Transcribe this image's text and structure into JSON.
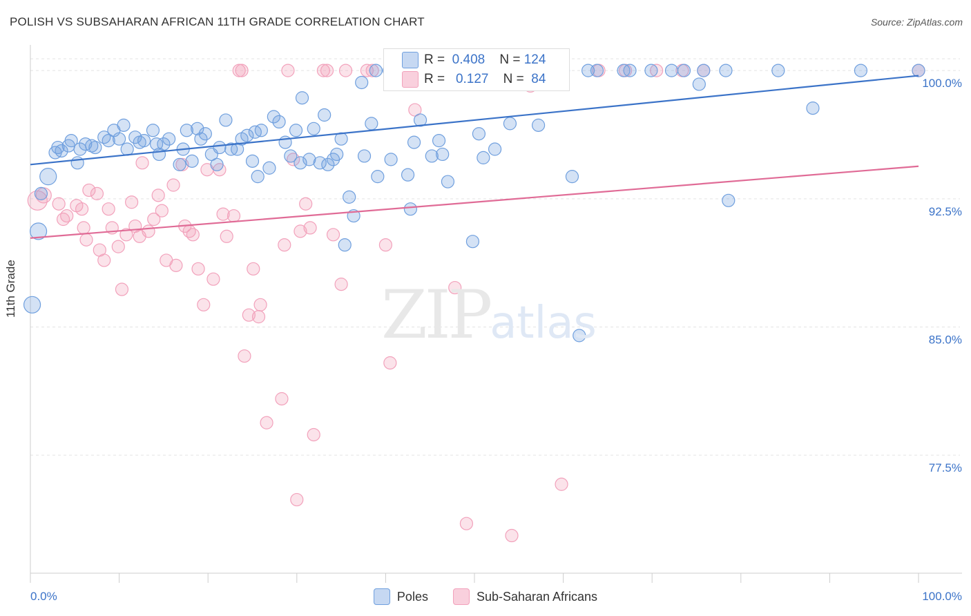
{
  "header": {
    "title": "POLISH VS SUBSAHARAN AFRICAN 11TH GRADE CORRELATION CHART",
    "source": "Source: ZipAtlas.com"
  },
  "watermark": {
    "zip": "ZIP",
    "atlas": "atlas"
  },
  "colors": {
    "blue": "#6f9fde",
    "blue_line": "#3b73c8",
    "pink": "#f2a1bb",
    "pink_line": "#e06b96",
    "tick_text": "#3b73c8"
  },
  "stats": {
    "poles": {
      "r_label": "R =",
      "r_value": "0.408",
      "n_label": "N =",
      "n_value": "124"
    },
    "africans": {
      "r_label": "R =",
      "r_value": "0.127",
      "n_label": "N =",
      "n_value": "84"
    }
  },
  "legend": {
    "poles": "Poles",
    "africans": "Sub-Saharan Africans"
  },
  "chart_data": {
    "type": "scatter",
    "title": "POLISH VS SUBSAHARAN AFRICAN 11TH GRADE CORRELATION CHART",
    "xlabel": "",
    "ylabel": "11th Grade",
    "xlim": [
      0,
      100
    ],
    "ylim": [
      70.6,
      101.5
    ],
    "x_tick_labels": [
      "0.0%",
      "100.0%"
    ],
    "y_ticks": [
      {
        "value": 100,
        "label": "100.0%"
      },
      {
        "value": 92.5,
        "label": "92.5%"
      },
      {
        "value": 85,
        "label": "85.0%"
      },
      {
        "value": 77.5,
        "label": "77.5%"
      }
    ],
    "grid": "horizontal dashed",
    "legend_position": "bottom-center",
    "series": [
      {
        "name": "Poles",
        "trend": {
          "x": [
            0,
            100
          ],
          "y": [
            94.5,
            99.7
          ]
        },
        "points": [
          [
            0.2,
            86.3
          ],
          [
            0.9,
            90.6
          ],
          [
            1.2,
            92.8
          ],
          [
            2.0,
            93.8
          ],
          [
            2.8,
            95.2
          ],
          [
            3.1,
            95.5
          ],
          [
            3.5,
            95.3
          ],
          [
            4.3,
            95.6
          ],
          [
            4.6,
            95.9
          ],
          [
            5.3,
            94.6
          ],
          [
            5.6,
            95.4
          ],
          [
            6.2,
            95.7
          ],
          [
            6.9,
            95.6
          ],
          [
            7.3,
            95.5
          ],
          [
            8.3,
            96.1
          ],
          [
            8.8,
            95.9
          ],
          [
            9.4,
            96.5
          ],
          [
            10.0,
            96.0
          ],
          [
            10.5,
            96.8
          ],
          [
            10.9,
            95.4
          ],
          [
            11.8,
            96.1
          ],
          [
            12.3,
            95.8
          ],
          [
            12.8,
            95.9
          ],
          [
            13.8,
            96.5
          ],
          [
            14.2,
            95.7
          ],
          [
            14.5,
            95.1
          ],
          [
            15.0,
            95.7
          ],
          [
            15.6,
            96.0
          ],
          [
            16.8,
            94.5
          ],
          [
            17.2,
            95.4
          ],
          [
            17.6,
            96.5
          ],
          [
            18.2,
            94.7
          ],
          [
            18.8,
            96.6
          ],
          [
            19.2,
            96.0
          ],
          [
            19.7,
            96.3
          ],
          [
            20.4,
            95.1
          ],
          [
            21.0,
            94.5
          ],
          [
            21.3,
            95.5
          ],
          [
            22.0,
            97.1
          ],
          [
            22.6,
            95.4
          ],
          [
            23.3,
            95.4
          ],
          [
            23.8,
            96.0
          ],
          [
            24.4,
            96.2
          ],
          [
            25.0,
            94.7
          ],
          [
            25.3,
            96.4
          ],
          [
            25.6,
            93.8
          ],
          [
            26.0,
            96.5
          ],
          [
            26.9,
            94.3
          ],
          [
            27.4,
            97.3
          ],
          [
            28.0,
            97.0
          ],
          [
            28.7,
            95.8
          ],
          [
            29.3,
            95.0
          ],
          [
            29.9,
            96.5
          ],
          [
            30.4,
            94.6
          ],
          [
            30.6,
            98.4
          ],
          [
            31.4,
            94.8
          ],
          [
            31.9,
            96.6
          ],
          [
            32.6,
            94.6
          ],
          [
            33.1,
            97.4
          ],
          [
            33.5,
            94.5
          ],
          [
            34.1,
            94.8
          ],
          [
            34.5,
            95.1
          ],
          [
            35.0,
            96.0
          ],
          [
            35.4,
            89.8
          ],
          [
            35.9,
            92.6
          ],
          [
            36.4,
            91.5
          ],
          [
            37.3,
            99.3
          ],
          [
            37.6,
            95.0
          ],
          [
            38.4,
            96.9
          ],
          [
            38.9,
            100
          ],
          [
            39.1,
            93.8
          ],
          [
            40.4,
            100
          ],
          [
            40.6,
            94.8
          ],
          [
            41.4,
            99.3
          ],
          [
            42.0,
            100
          ],
          [
            42.5,
            93.9
          ],
          [
            42.8,
            91.9
          ],
          [
            43.2,
            95.8
          ],
          [
            43.9,
            97.1
          ],
          [
            44.2,
            100
          ],
          [
            45.2,
            95.0
          ],
          [
            45.6,
            100
          ],
          [
            46.0,
            95.9
          ],
          [
            46.4,
            95.1
          ],
          [
            47.0,
            93.5
          ],
          [
            48.0,
            100
          ],
          [
            49.0,
            100
          ],
          [
            49.8,
            90.0
          ],
          [
            50.5,
            96.3
          ],
          [
            51.0,
            94.9
          ],
          [
            51.5,
            100
          ],
          [
            52.3,
            95.4
          ],
          [
            53.2,
            100
          ],
          [
            54.0,
            96.9
          ],
          [
            55.0,
            100
          ],
          [
            56.3,
            100
          ],
          [
            57.2,
            96.8
          ],
          [
            59.0,
            100
          ],
          [
            60.0,
            100
          ],
          [
            61.0,
            93.8
          ],
          [
            61.8,
            84.5
          ],
          [
            62.8,
            100
          ],
          [
            63.8,
            100
          ],
          [
            66.8,
            100
          ],
          [
            67.5,
            100
          ],
          [
            69.9,
            100
          ],
          [
            72.2,
            100
          ],
          [
            73.6,
            100
          ],
          [
            75.3,
            99.2
          ],
          [
            75.8,
            100
          ],
          [
            78.3,
            100
          ],
          [
            78.6,
            92.4
          ],
          [
            84.2,
            100
          ],
          [
            88.1,
            97.8
          ],
          [
            100,
            100
          ],
          [
            93.5,
            100
          ]
        ],
        "point_sizes_note": "few points larger"
      },
      {
        "name": "Sub-Saharan Africans",
        "trend": {
          "x": [
            0,
            100
          ],
          "y": [
            90.2,
            94.4
          ]
        },
        "points": [
          [
            0.8,
            92.4
          ],
          [
            1.5,
            92.7
          ],
          [
            3.2,
            92.2
          ],
          [
            3.7,
            91.3
          ],
          [
            4.1,
            91.5
          ],
          [
            5.2,
            92.1
          ],
          [
            5.8,
            91.9
          ],
          [
            6.0,
            90.8
          ],
          [
            6.3,
            90.1
          ],
          [
            6.6,
            93.0
          ],
          [
            7.5,
            92.8
          ],
          [
            7.8,
            89.5
          ],
          [
            8.3,
            88.9
          ],
          [
            8.8,
            91.9
          ],
          [
            9.2,
            90.8
          ],
          [
            9.9,
            89.7
          ],
          [
            10.3,
            87.2
          ],
          [
            10.8,
            90.4
          ],
          [
            11.4,
            92.3
          ],
          [
            11.8,
            90.9
          ],
          [
            12.3,
            90.3
          ],
          [
            12.6,
            94.6
          ],
          [
            13.3,
            90.6
          ],
          [
            13.9,
            91.3
          ],
          [
            14.4,
            92.7
          ],
          [
            14.8,
            91.8
          ],
          [
            15.3,
            88.9
          ],
          [
            16.1,
            93.3
          ],
          [
            16.4,
            88.6
          ],
          [
            17.1,
            94.5
          ],
          [
            17.4,
            90.9
          ],
          [
            17.9,
            90.6
          ],
          [
            18.3,
            90.4
          ],
          [
            18.9,
            88.4
          ],
          [
            19.5,
            86.3
          ],
          [
            19.9,
            94.2
          ],
          [
            20.6,
            87.8
          ],
          [
            21.3,
            94.2
          ],
          [
            21.7,
            91.6
          ],
          [
            22.1,
            90.3
          ],
          [
            22.9,
            91.5
          ],
          [
            23.5,
            100
          ],
          [
            23.8,
            100
          ],
          [
            24.1,
            83.3
          ],
          [
            24.6,
            85.7
          ],
          [
            25.1,
            88.4
          ],
          [
            25.7,
            85.6
          ],
          [
            25.9,
            86.3
          ],
          [
            26.6,
            79.4
          ],
          [
            28.3,
            80.8
          ],
          [
            28.6,
            89.8
          ],
          [
            29.0,
            100
          ],
          [
            29.6,
            94.8
          ],
          [
            30.0,
            74.9
          ],
          [
            30.4,
            90.6
          ],
          [
            31.0,
            92.2
          ],
          [
            31.5,
            90.8
          ],
          [
            31.9,
            78.7
          ],
          [
            33.0,
            100
          ],
          [
            33.4,
            100
          ],
          [
            34.1,
            90.4
          ],
          [
            35.0,
            87.5
          ],
          [
            35.5,
            100
          ],
          [
            37.9,
            100
          ],
          [
            38.5,
            100
          ],
          [
            40.0,
            89.8
          ],
          [
            40.5,
            82.9
          ],
          [
            41.5,
            100
          ],
          [
            43.3,
            97.7
          ],
          [
            44.0,
            100
          ],
          [
            47.5,
            100
          ],
          [
            47.8,
            87.3
          ],
          [
            49.1,
            73.5
          ],
          [
            50.5,
            100
          ],
          [
            51.7,
            100
          ],
          [
            54.2,
            72.8
          ],
          [
            56.3,
            99.1
          ],
          [
            59.8,
            75.8
          ],
          [
            64.0,
            100
          ],
          [
            67.0,
            100
          ],
          [
            70.5,
            100
          ],
          [
            73.4,
            100
          ],
          [
            75.8,
            100
          ],
          [
            100,
            100
          ]
        ]
      }
    ]
  }
}
